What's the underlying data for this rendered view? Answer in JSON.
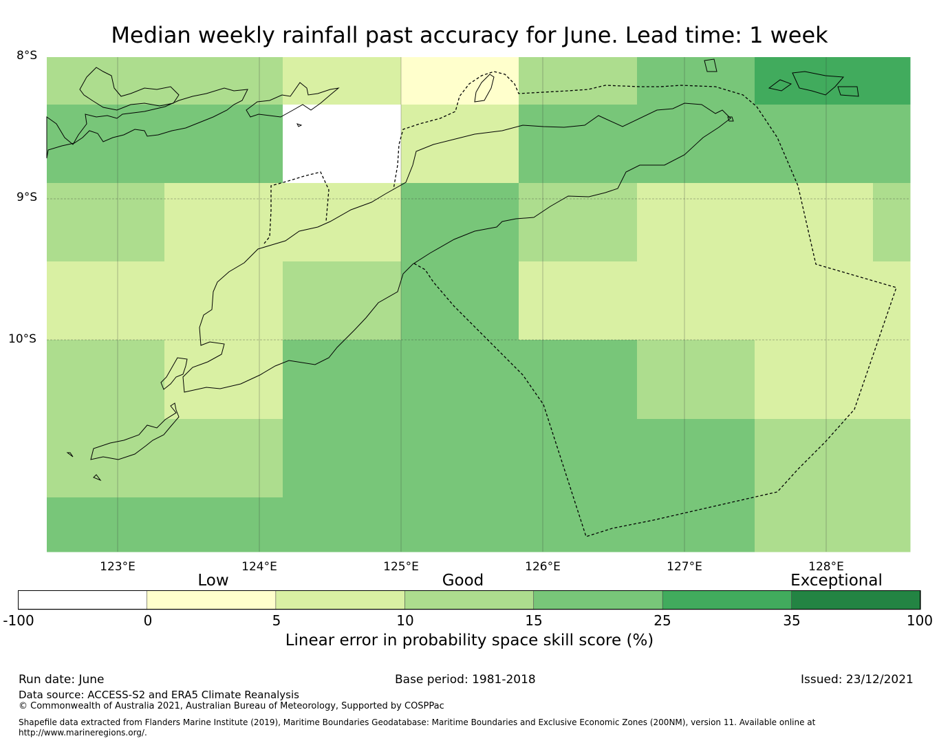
{
  "title": "Median weekly rainfall past accuracy for June. Lead time: 1 week",
  "map": {
    "lat_labels": [
      "8°S",
      "9°S",
      "10°S"
    ],
    "lon_labels": [
      "123°E",
      "124°E",
      "125°E",
      "126°E",
      "127°E",
      "128°E"
    ],
    "extent": {
      "lon_min": 122.5,
      "lon_max": 128.6,
      "lat_north": -8.0,
      "lat_south": -11.5
    }
  },
  "colorbar": {
    "categories": [
      "Low",
      "Good",
      "Exceptional"
    ],
    "ticks": [
      "-100",
      "0",
      "5",
      "10",
      "15",
      "25",
      "35",
      "100"
    ],
    "colors": [
      "#ffffff",
      "#ffffcc",
      "#d9f0a3",
      "#addd8e",
      "#78c679",
      "#41ab5d",
      "#238443"
    ],
    "label": "Linear error in probability space skill score (%)"
  },
  "footer": {
    "run_date": "Run date: June",
    "base_period": "Base period: 1981-2018",
    "issued": "Issued: 23/12/2021",
    "data_source": "Data source: ACCESS-S2 and ERA5 Climate Reanalysis",
    "copyright": "© Commonwealth of Australia 2021, Australian Bureau of Meteorology, Supported by COSPPac",
    "shapefile_line1": "Shapefile data extracted from Flanders Marine Institute (2019), Maritime Boundaries Geodatabase: Maritime Boundaries and Exclusive Economic Zones (200NM), version 11. Available online at",
    "shapefile_line2": "http://www.marineregions.org/."
  }
}
